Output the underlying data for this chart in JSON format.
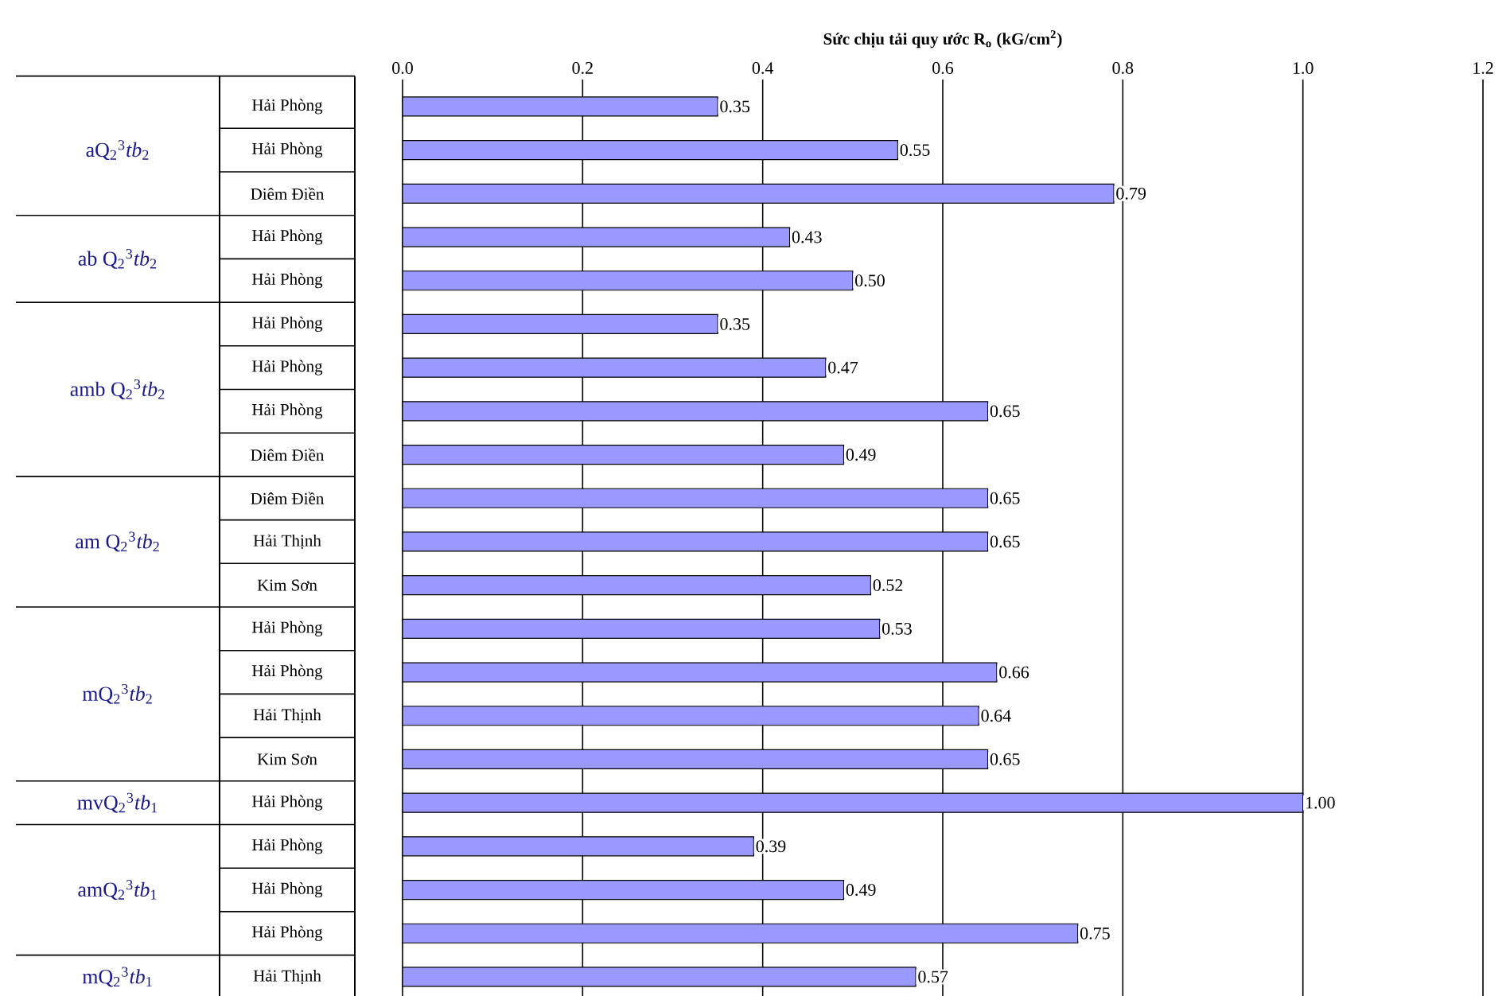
{
  "chart_data": {
    "type": "bar",
    "orientation": "horizontal",
    "xlabel": "Sức chịu tải quy ước R$_{o}$ (kG/cm$^{2}$)",
    "categories": [
      "Hải Phòng",
      "Hải Phòng",
      "Diêm Điền",
      "Hải Phòng",
      "Hải Phòng",
      "Hải Phòng",
      "Hải Phòng",
      "Hải Phòng",
      "Diêm Điền",
      "Diêm Điền",
      "Hải Thịnh",
      "Kim Sơn",
      "Hải Phòng",
      "Hải Phòng",
      "Hải Thịnh",
      "Kim Sơn",
      "Hải Phòng",
      "Hải Phòng",
      "Hải Phòng",
      "Hải Phòng",
      "Hải Thịnh"
    ],
    "values": [
      0.35,
      0.55,
      0.79,
      0.43,
      0.5,
      0.35,
      0.47,
      0.65,
      0.49,
      0.65,
      0.65,
      0.52,
      0.53,
      0.66,
      0.64,
      0.65,
      1.0,
      0.39,
      0.49,
      0.75,
      0.57
    ],
    "value_labels": [
      "0.35",
      "0.55",
      "0.79",
      "0.43",
      "0.50",
      "0.35",
      "0.47",
      "0.65",
      "0.49",
      "0.65",
      "0.65",
      "0.52",
      "0.53",
      "0.66",
      "0.64",
      "0.65",
      "1.00",
      "0.39",
      "0.49",
      "0.75",
      "0.57"
    ],
    "color": "#9999ff",
    "xlim": [
      0,
      1.2
    ],
    "xticks": [
      {
        "value": 0,
        "label": "0.0"
      },
      {
        "value": 0.2,
        "label": "0.2"
      },
      {
        "value": 0.4,
        "label": "0.4"
      },
      {
        "value": 0.6,
        "label": "0.6"
      },
      {
        "value": 0.8,
        "label": "0.8"
      },
      {
        "value": 1,
        "label": "1.0"
      },
      {
        "value": 1.2,
        "label": "1.2"
      }
    ],
    "grid": "x",
    "annotations": [
      "aQ$_{2}$$^{3}$*tb*$_{2}$",
      "ab Q$_{2}$$^{3}$*tb*$_{2}$",
      "amb Q$_{2}$$^{3}$*tb*$_{2}$",
      "am Q$_{2}$$^{3}$*tb*$_{2}$",
      "mQ$_{2}$$^{3}$*tb*$_{2}$",
      "mvQ$_{2}$$^{3}$*tb*$_{1}$",
      "amQ$_{2}$$^{3}$*tb*$_{1}$",
      "mQ$_{2}$$^{3}$*tb*$_{1}$"
    ]
  }
}
